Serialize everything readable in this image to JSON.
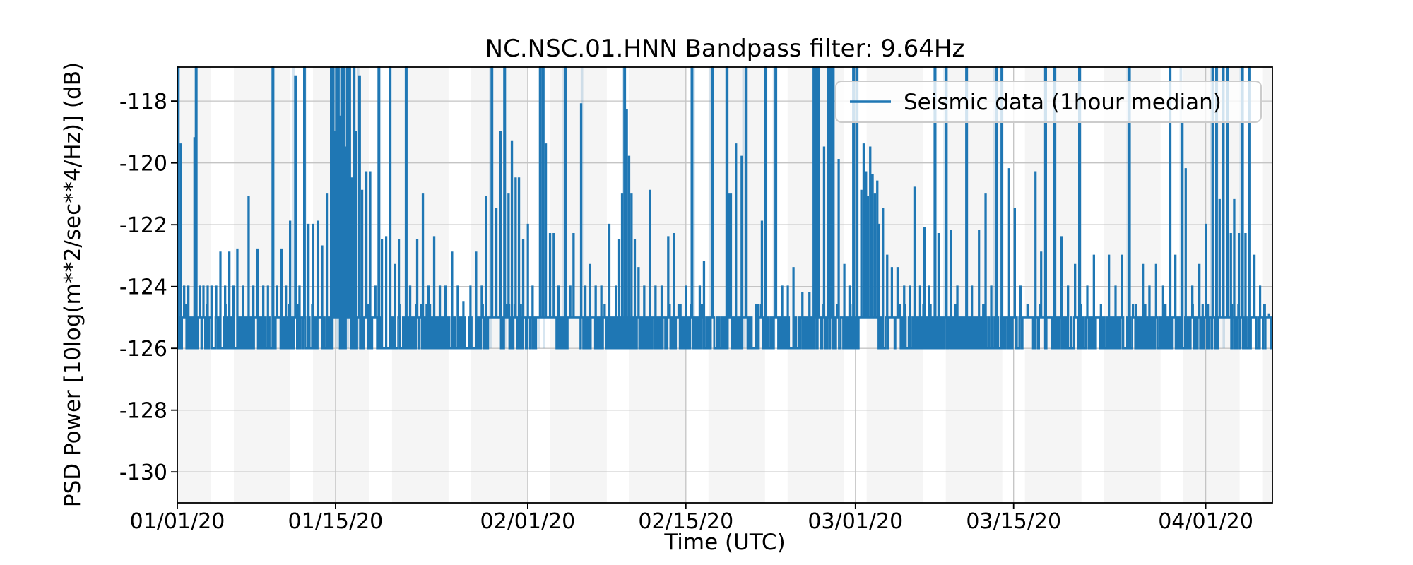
{
  "figure": {
    "background": "#ffffff"
  },
  "chart_data": {
    "type": "line",
    "title": "NC.NSC.01.HNN Bandpass filter: 9.64Hz",
    "xlabel": "Time (UTC)",
    "ylabel": "PSD Power [10log(m**2/sec**4/Hz)] (dB)",
    "legend": {
      "position": "upper right",
      "entries": [
        "Seismic data (1hour median)"
      ]
    },
    "line_color": "#1f77b4",
    "grid": true,
    "grid_color": "#c4c4c4",
    "weekday_band_color": "#f5f5f5",
    "event_column_color": "rgba(31,119,180,0.18)",
    "x_tick_labels": [
      "01/01/20",
      "01/15/20",
      "02/01/20",
      "02/15/20",
      "03/01/20",
      "03/15/20",
      "04/01/20"
    ],
    "x_tick_days": [
      0,
      14,
      31,
      45,
      60,
      74,
      91
    ],
    "x_range_days": [
      0,
      96.9
    ],
    "y_ticks": [
      -118,
      -120,
      -122,
      -124,
      -126,
      -128,
      -130
    ],
    "ylim": [
      -131.0,
      -116.9
    ],
    "baseline_db": -126,
    "plateau_level_db": -125,
    "weekday_bands_days": [
      [
        0,
        3
      ],
      [
        5,
        10
      ],
      [
        12,
        17
      ],
      [
        19,
        24
      ],
      [
        26,
        31
      ],
      [
        33,
        38
      ],
      [
        40,
        45
      ],
      [
        47,
        52
      ],
      [
        54,
        59
      ],
      [
        61,
        66
      ],
      [
        68,
        73
      ],
      [
        75,
        80
      ],
      [
        82,
        87
      ],
      [
        89,
        94
      ],
      [
        96,
        96.9
      ]
    ],
    "plateaus_days": [
      [
        27.5,
        28.6
      ],
      [
        31.8,
        33.5
      ],
      [
        34.6,
        35.4
      ],
      [
        60.3,
        62.0
      ],
      [
        74.8,
        75.7
      ],
      [
        92.3,
        93.2
      ],
      [
        96.3,
        96.8
      ]
    ],
    "noise_regions": [
      [
        0,
        3,
        0.5
      ],
      [
        3,
        5,
        0.3
      ],
      [
        5,
        8,
        0.35
      ],
      [
        8,
        12,
        0.45
      ],
      [
        12,
        17,
        0.55
      ],
      [
        17,
        22,
        0.35
      ],
      [
        22,
        27,
        0.3
      ],
      [
        27,
        31.8,
        0.55
      ],
      [
        33.5,
        34.6,
        0.5
      ],
      [
        35.4,
        39,
        0.4
      ],
      [
        39,
        45,
        0.45
      ],
      [
        45,
        50,
        0.35
      ],
      [
        50,
        54,
        0.45
      ],
      [
        54,
        59,
        0.45
      ],
      [
        59,
        60.3,
        0.5
      ],
      [
        62,
        64,
        0.55
      ],
      [
        64,
        68,
        0.4
      ],
      [
        68,
        73,
        0.45
      ],
      [
        73,
        74.8,
        0.5
      ],
      [
        75.7,
        78,
        0.5
      ],
      [
        78,
        82,
        0.35
      ],
      [
        82,
        86,
        0.4
      ],
      [
        86,
        90,
        0.45
      ],
      [
        90,
        92.3,
        0.5
      ],
      [
        93.2,
        96.3,
        0.5
      ]
    ],
    "event_columns_days": [
      0.1,
      1.7,
      8.5,
      10.3,
      11.3,
      13.7,
      14.1,
      14.55,
      15.1,
      15.7,
      16.0,
      17.9,
      20.3,
      27.7,
      29.0,
      32.0,
      32.45,
      34.2,
      35.8,
      39.45,
      45.7,
      47.2,
      48.7,
      50.1,
      50.4,
      52.1,
      52.8,
      56.5,
      57.9,
      59.9,
      60.2,
      67.1,
      67.9,
      69.9,
      72.3,
      73.0,
      76.7,
      77.7,
      79.9,
      84.1,
      87.9,
      88.8,
      91.5,
      92.0,
      92.6,
      94.1,
      94.9
    ],
    "spikes_day_peakdb": [
      [
        0.04,
        -116.5
      ],
      [
        0.3,
        -119.4
      ],
      [
        0.6,
        -124
      ],
      [
        0.95,
        -124
      ],
      [
        1.5,
        -119.2
      ],
      [
        1.62,
        -116.5
      ],
      [
        1.95,
        -124
      ],
      [
        2.3,
        -124
      ],
      [
        2.65,
        -124
      ],
      [
        3.0,
        -124
      ],
      [
        3.4,
        -124
      ],
      [
        3.8,
        -122.9
      ],
      [
        4.2,
        -124
      ],
      [
        4.6,
        -122.9
      ],
      [
        4.95,
        -124
      ],
      [
        5.3,
        -122.8
      ],
      [
        5.8,
        -124
      ],
      [
        6.3,
        -121.1
      ],
      [
        6.7,
        -124
      ],
      [
        7.1,
        -122.8
      ],
      [
        7.6,
        -124
      ],
      [
        8.0,
        -124
      ],
      [
        8.4,
        -116.5
      ],
      [
        8.8,
        -124
      ],
      [
        9.2,
        -122.8
      ],
      [
        9.6,
        -124
      ],
      [
        9.95,
        -121.9
      ],
      [
        10.4,
        -117.2
      ],
      [
        10.8,
        -124
      ],
      [
        11.2,
        -116.5
      ],
      [
        11.6,
        -122
      ],
      [
        12.0,
        -122
      ],
      [
        12.4,
        -121.9
      ],
      [
        12.8,
        -122.7
      ],
      [
        13.2,
        -121
      ],
      [
        13.6,
        -116.5
      ],
      [
        13.75,
        -116.5
      ],
      [
        13.9,
        -119
      ],
      [
        14.05,
        -116.5
      ],
      [
        14.2,
        -116.5
      ],
      [
        14.35,
        -118.5
      ],
      [
        14.5,
        -116.5
      ],
      [
        14.65,
        -116.5
      ],
      [
        14.8,
        -119.5
      ],
      [
        15.0,
        -116.5
      ],
      [
        15.2,
        -116.5
      ],
      [
        15.4,
        -120.5
      ],
      [
        15.6,
        -116.5
      ],
      [
        15.8,
        -119
      ],
      [
        16.1,
        -117.2
      ],
      [
        16.35,
        -120.9
      ],
      [
        16.7,
        -120.3
      ],
      [
        17.05,
        -120.3
      ],
      [
        17.5,
        -124
      ],
      [
        17.8,
        -116.5
      ],
      [
        18.1,
        -122.5
      ],
      [
        18.45,
        -122.4
      ],
      [
        18.8,
        -116.5
      ],
      [
        19.2,
        -123.3
      ],
      [
        19.6,
        -122.5
      ],
      [
        20.2,
        -116.5
      ],
      [
        20.6,
        -124
      ],
      [
        21.2,
        -122.5
      ],
      [
        21.7,
        -121.0
      ],
      [
        22.2,
        -124
      ],
      [
        22.7,
        -122.4
      ],
      [
        23.2,
        -124
      ],
      [
        23.7,
        -124
      ],
      [
        24.3,
        -122.9
      ],
      [
        24.8,
        -124
      ],
      [
        25.3,
        -124.5
      ],
      [
        25.9,
        -124
      ],
      [
        26.4,
        -122.9
      ],
      [
        26.9,
        -124
      ],
      [
        27.3,
        -121.1
      ],
      [
        27.8,
        -116.5
      ],
      [
        28.2,
        -121.5
      ],
      [
        28.6,
        -119.0
      ],
      [
        28.9,
        -116.5
      ],
      [
        29.3,
        -121.0
      ],
      [
        29.6,
        -119.3
      ],
      [
        29.9,
        -120.5
      ],
      [
        30.2,
        -120.5
      ],
      [
        30.6,
        -122.5
      ],
      [
        31.0,
        -122.0
      ],
      [
        31.4,
        -124
      ],
      [
        32.1,
        -116.5
      ],
      [
        32.35,
        -116.5
      ],
      [
        32.6,
        -119.4
      ],
      [
        32.95,
        -122.3
      ],
      [
        33.3,
        -122.3
      ],
      [
        33.7,
        -124
      ],
      [
        34.3,
        -116.5
      ],
      [
        34.75,
        -124
      ],
      [
        35.05,
        -122.3
      ],
      [
        35.7,
        -118.1
      ],
      [
        36.1,
        -124
      ],
      [
        36.5,
        -123.3
      ],
      [
        37.0,
        -124
      ],
      [
        37.5,
        -124
      ],
      [
        38.2,
        -122.0
      ],
      [
        38.8,
        -124
      ],
      [
        39.1,
        -122.5
      ],
      [
        39.35,
        -121.0
      ],
      [
        39.55,
        -116.5
      ],
      [
        39.75,
        -118.3
      ],
      [
        39.95,
        -119.8
      ],
      [
        40.15,
        -121.0
      ],
      [
        40.45,
        -122.5
      ],
      [
        40.8,
        -123.4
      ],
      [
        41.3,
        -124
      ],
      [
        41.8,
        -120.9
      ],
      [
        42.3,
        -124
      ],
      [
        42.85,
        -124
      ],
      [
        43.4,
        -122.4
      ],
      [
        43.9,
        -122.3
      ],
      [
        44.5,
        -124.6
      ],
      [
        45.0,
        -124
      ],
      [
        45.5,
        -116.5
      ],
      [
        46.2,
        -124
      ],
      [
        46.6,
        -123.2
      ],
      [
        47.3,
        -116.5
      ],
      [
        48.6,
        -116.5
      ],
      [
        48.75,
        -121.0
      ],
      [
        48.95,
        -121.0
      ],
      [
        49.4,
        -119.4
      ],
      [
        49.9,
        -119.8
      ],
      [
        50.3,
        -116.5
      ],
      [
        51.2,
        -124.6
      ],
      [
        51.7,
        -121.9
      ],
      [
        52.0,
        -116.5
      ],
      [
        52.9,
        -116.5
      ],
      [
        53.5,
        -124
      ],
      [
        54.0,
        -124
      ],
      [
        54.5,
        -123.4
      ],
      [
        55.3,
        -124.2
      ],
      [
        55.9,
        -124.2
      ],
      [
        56.3,
        -116.5
      ],
      [
        56.5,
        -116.5
      ],
      [
        56.7,
        -116.5
      ],
      [
        57.2,
        -119.5
      ],
      [
        57.6,
        -116.5
      ],
      [
        57.8,
        -116.5
      ],
      [
        58.0,
        -116.5
      ],
      [
        58.5,
        -119.9
      ],
      [
        59.0,
        -123.3
      ],
      [
        59.45,
        -124
      ],
      [
        59.8,
        -116.5
      ],
      [
        60.1,
        -116.5
      ],
      [
        60.5,
        -120.9
      ],
      [
        60.7,
        -119.4
      ],
      [
        60.9,
        -120.3
      ],
      [
        61.1,
        -121.1
      ],
      [
        61.3,
        -119.5
      ],
      [
        61.5,
        -120.4
      ],
      [
        61.7,
        -121.0
      ],
      [
        61.9,
        -120.6
      ],
      [
        62.1,
        -122.0
      ],
      [
        62.4,
        -121.5
      ],
      [
        62.8,
        -123.0
      ],
      [
        63.2,
        -123.4
      ],
      [
        63.7,
        -123.4
      ],
      [
        64.3,
        -124
      ],
      [
        64.8,
        -124
      ],
      [
        65.2,
        -120.8
      ],
      [
        65.7,
        -124
      ],
      [
        66.1,
        -122.1
      ],
      [
        66.5,
        -124
      ],
      [
        67.0,
        -116.5
      ],
      [
        67.35,
        -122.3
      ],
      [
        68.0,
        -116.5
      ],
      [
        68.45,
        -122.2
      ],
      [
        69.0,
        -124
      ],
      [
        69.8,
        -116.5
      ],
      [
        70.3,
        -124
      ],
      [
        70.9,
        -122.2
      ],
      [
        71.5,
        -121.0
      ],
      [
        72.0,
        -124
      ],
      [
        72.4,
        -116.5
      ],
      [
        72.9,
        -116.5
      ],
      [
        73.6,
        -120.2
      ],
      [
        74.1,
        -121.5
      ],
      [
        74.6,
        -124
      ],
      [
        75.2,
        -124.6
      ],
      [
        75.9,
        -120.3
      ],
      [
        76.4,
        -122.9
      ],
      [
        76.8,
        -116.5
      ],
      [
        77.6,
        -116.5
      ],
      [
        78.2,
        -122.4
      ],
      [
        78.8,
        -124
      ],
      [
        79.4,
        -123.3
      ],
      [
        79.8,
        -116.5
      ],
      [
        80.5,
        -124
      ],
      [
        81.1,
        -123.0
      ],
      [
        81.7,
        -124.6
      ],
      [
        82.4,
        -123.0
      ],
      [
        83.0,
        -124
      ],
      [
        83.6,
        -123.0
      ],
      [
        84.2,
        -116.5
      ],
      [
        84.8,
        -124.6
      ],
      [
        85.4,
        -123.3
      ],
      [
        86.0,
        -124
      ],
      [
        86.6,
        -123.3
      ],
      [
        87.2,
        -124
      ],
      [
        87.8,
        -116.5
      ],
      [
        88.3,
        -123.0
      ],
      [
        88.9,
        -118.7
      ],
      [
        89.2,
        -120.2
      ],
      [
        89.8,
        -124
      ],
      [
        90.4,
        -123.3
      ],
      [
        91.0,
        -122.0
      ],
      [
        91.6,
        -116.5
      ],
      [
        91.9,
        -116.5
      ],
      [
        92.2,
        -121.2
      ],
      [
        92.5,
        -116.5
      ],
      [
        92.9,
        -116.5
      ],
      [
        93.2,
        -122.3
      ],
      [
        93.5,
        -121.2
      ],
      [
        93.9,
        -122.3
      ],
      [
        94.2,
        -116.5
      ],
      [
        94.5,
        -122.3
      ],
      [
        94.8,
        -116.5
      ],
      [
        95.3,
        -123.0
      ],
      [
        95.8,
        -124
      ],
      [
        96.2,
        -124.6
      ],
      [
        96.6,
        -124.9
      ]
    ]
  }
}
